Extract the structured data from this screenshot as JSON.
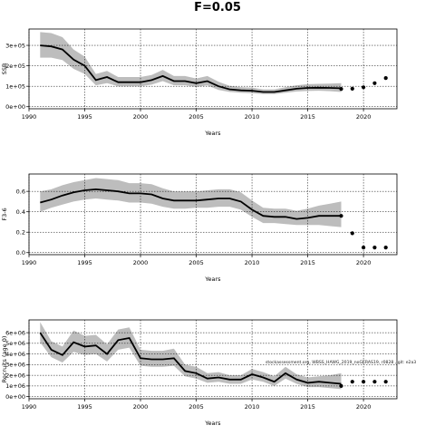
{
  "figure": {
    "title": "F=0.05",
    "annotation": "stockassessment.org, WBSS_HAWG_2019_noGERAS19, r0828 , git: e2a3"
  },
  "chart_data": [
    {
      "type": "line",
      "xlabel": "Years",
      "ylabel": "SSB",
      "xlim": [
        1990,
        2023
      ],
      "ylim": [
        -10000,
        380000
      ],
      "xticks": [
        1990,
        1995,
        2000,
        2005,
        2010,
        2015,
        2020
      ],
      "yticks": [
        0,
        100000,
        200000,
        300000
      ],
      "ytick_labels": [
        "0e+00",
        "1e+05",
        "2e+05",
        "3e+05"
      ],
      "grid": true,
      "colors": {
        "band": "#bdbdbd",
        "line": "#000000"
      },
      "x": [
        1991,
        1992,
        1993,
        1994,
        1995,
        1996,
        1997,
        1998,
        1999,
        2000,
        2001,
        2002,
        2003,
        2004,
        2005,
        2006,
        2007,
        2008,
        2009,
        2010,
        2011,
        2012,
        2013,
        2014,
        2015,
        2016,
        2017,
        2018
      ],
      "y": [
        300000,
        295000,
        280000,
        230000,
        200000,
        130000,
        145000,
        120000,
        120000,
        120000,
        130000,
        150000,
        125000,
        125000,
        115000,
        125000,
        100000,
        85000,
        80000,
        78000,
        72000,
        72000,
        80000,
        88000,
        92000,
        93000,
        92000,
        90000
      ],
      "lower": [
        240000,
        240000,
        228000,
        185000,
        160000,
        105000,
        115000,
        100000,
        100000,
        100000,
        108000,
        125000,
        105000,
        105000,
        97000,
        104000,
        82000,
        72000,
        68000,
        66000,
        62000,
        62000,
        68000,
        74000,
        77000,
        78000,
        76000,
        72000
      ],
      "upper": [
        365000,
        360000,
        340000,
        280000,
        245000,
        160000,
        175000,
        145000,
        145000,
        145000,
        155000,
        180000,
        150000,
        150000,
        138000,
        150000,
        122000,
        102000,
        95000,
        93000,
        85000,
        85000,
        95000,
        105000,
        110000,
        112000,
        113000,
        115000
      ],
      "forecast_x": [
        2018,
        2019,
        2020,
        2021,
        2022
      ],
      "forecast_y": [
        87000,
        88000,
        95000,
        115000,
        140000
      ]
    },
    {
      "type": "line",
      "xlabel": "Years",
      "ylabel": "F3-6",
      "xlim": [
        1990,
        2023
      ],
      "ylim": [
        -0.02,
        0.77
      ],
      "xticks": [
        1990,
        1995,
        2000,
        2005,
        2010,
        2015,
        2020
      ],
      "yticks": [
        0.0,
        0.2,
        0.4,
        0.6
      ],
      "ytick_labels": [
        "0.0",
        "0.2",
        "0.4",
        "0.6"
      ],
      "grid": true,
      "colors": {
        "band": "#bdbdbd",
        "line": "#000000"
      },
      "x": [
        1991,
        1992,
        1993,
        1994,
        1995,
        1996,
        1997,
        1998,
        1999,
        2000,
        2001,
        2002,
        2003,
        2004,
        2005,
        2006,
        2007,
        2008,
        2009,
        2010,
        2011,
        2012,
        2013,
        2014,
        2015,
        2016,
        2017,
        2018
      ],
      "y": [
        0.49,
        0.52,
        0.56,
        0.59,
        0.61,
        0.62,
        0.61,
        0.6,
        0.58,
        0.58,
        0.57,
        0.53,
        0.51,
        0.51,
        0.51,
        0.52,
        0.53,
        0.53,
        0.5,
        0.42,
        0.36,
        0.35,
        0.35,
        0.33,
        0.34,
        0.36,
        0.36,
        0.36
      ],
      "lower": [
        0.4,
        0.44,
        0.47,
        0.5,
        0.52,
        0.53,
        0.52,
        0.51,
        0.49,
        0.49,
        0.48,
        0.45,
        0.43,
        0.43,
        0.44,
        0.44,
        0.45,
        0.45,
        0.42,
        0.35,
        0.29,
        0.29,
        0.28,
        0.27,
        0.27,
        0.27,
        0.26,
        0.25
      ],
      "upper": [
        0.6,
        0.62,
        0.66,
        0.69,
        0.71,
        0.73,
        0.72,
        0.71,
        0.68,
        0.68,
        0.67,
        0.63,
        0.6,
        0.6,
        0.6,
        0.61,
        0.62,
        0.62,
        0.59,
        0.51,
        0.44,
        0.43,
        0.43,
        0.41,
        0.43,
        0.46,
        0.48,
        0.5
      ],
      "forecast_x": [
        2018,
        2019,
        2020,
        2021,
        2022
      ],
      "forecast_y": [
        0.36,
        0.19,
        0.05,
        0.05,
        0.05
      ]
    },
    {
      "type": "line",
      "xlabel": "Years",
      "ylabel": "Recruits (age 0)",
      "xlim": [
        1990,
        2023
      ],
      "ylim": [
        -200000,
        7200000
      ],
      "xticks": [
        1990,
        1995,
        2000,
        2005,
        2010,
        2015,
        2020
      ],
      "yticks": [
        0,
        1000000,
        2000000,
        3000000,
        4000000,
        5000000,
        6000000
      ],
      "ytick_labels": [
        "0e+00",
        "1e+06",
        "2e+06",
        "3e+06",
        "4e+06",
        "5e+06",
        "6e+06"
      ],
      "grid": true,
      "colors": {
        "band": "#bdbdbd",
        "line": "#000000"
      },
      "x": [
        1991,
        1992,
        1993,
        1994,
        1995,
        1996,
        1997,
        1998,
        1999,
        2000,
        2001,
        2002,
        2003,
        2004,
        2005,
        2006,
        2007,
        2008,
        2009,
        2010,
        2011,
        2012,
        2013,
        2014,
        2015,
        2016,
        2017,
        2018
      ],
      "y": [
        6000000,
        4400000,
        3900000,
        5100000,
        4700000,
        4800000,
        4000000,
        5300000,
        5500000,
        3600000,
        3500000,
        3500000,
        3600000,
        2400000,
        2200000,
        1700000,
        1800000,
        1600000,
        1600000,
        2100000,
        1800000,
        1400000,
        2200000,
        1600000,
        1300000,
        1400000,
        1300000,
        1200000
      ],
      "lower": [
        5100000,
        3700000,
        3200000,
        4200000,
        3900000,
        4000000,
        3300000,
        4400000,
        4600000,
        2900000,
        2800000,
        2800000,
        2900000,
        1900000,
        1700000,
        1300000,
        1400000,
        1200000,
        1200000,
        1600000,
        1400000,
        1000000,
        1700000,
        1200000,
        900000,
        900000,
        800000,
        700000
      ],
      "upper": [
        7000000,
        5200000,
        4700000,
        6200000,
        5700000,
        5800000,
        4900000,
        6300000,
        6500000,
        4400000,
        4300000,
        4300000,
        4500000,
        3000000,
        2800000,
        2200000,
        2300000,
        2000000,
        2000000,
        2600000,
        2300000,
        1900000,
        2800000,
        2100000,
        1800000,
        1900000,
        2000000,
        2200000
      ],
      "forecast_x": [
        2018,
        2019,
        2020,
        2021,
        2022
      ],
      "forecast_y": [
        1000000,
        1400000,
        1400000,
        1400000,
        1400000
      ]
    }
  ]
}
